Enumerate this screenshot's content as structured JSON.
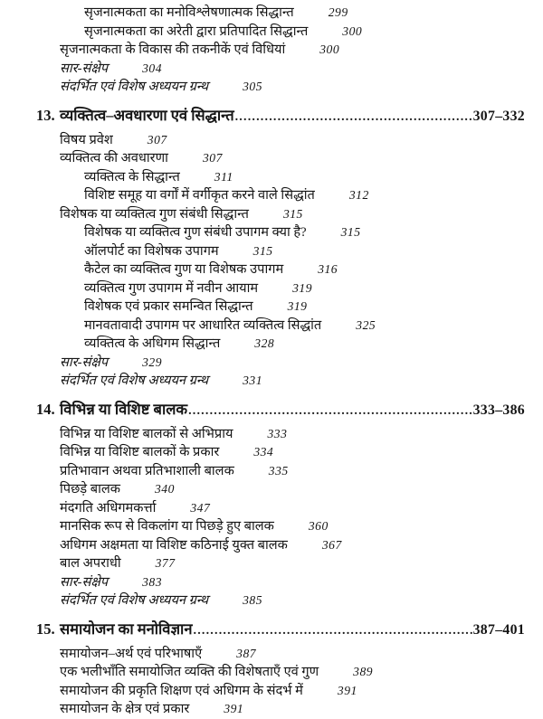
{
  "document": {
    "kind_label": "table-of-contents-page",
    "colors": {
      "background": "#ffffff",
      "text": "#151515"
    },
    "sections": [
      {
        "kind": "entries-only",
        "entries": [
          {
            "level": 2,
            "emphasis": false,
            "title": "सृजनात्मकता का मनोविश्लेषणात्मक सिद्धान्त",
            "page": "299"
          },
          {
            "level": 2,
            "emphasis": false,
            "title": "सृजनात्मकता का अरेती द्वारा प्रतिपादित सिद्धान्त",
            "page": "300"
          },
          {
            "level": 1,
            "emphasis": false,
            "title": "सृजनात्मकता के विकास की तकनीकें एवं विधियां",
            "page": "300"
          },
          {
            "level": 1,
            "emphasis": true,
            "title": "सार-संक्षेप",
            "page": "304"
          },
          {
            "level": 1,
            "emphasis": true,
            "title": "संदर्भित एवं विशेष अध्ययन ग्रन्थ",
            "page": "305"
          }
        ]
      },
      {
        "kind": "chapter",
        "number": "13.",
        "title": "व्यक्तित्व–अवधारणा एवं सिद्धान्त",
        "page_range": "307–332",
        "entries": [
          {
            "level": 1,
            "emphasis": false,
            "title": "विषय प्रवेश",
            "page": "307"
          },
          {
            "level": 1,
            "emphasis": false,
            "title": "व्यक्तित्व की अवधारणा",
            "page": "307"
          },
          {
            "level": 2,
            "emphasis": false,
            "title": "व्यक्तित्व के सिद्धान्त",
            "page": "311"
          },
          {
            "level": 2,
            "emphasis": false,
            "title": "विशिष्ट समूह या वर्गों में वर्गीकृत करने वाले सिद्धांत",
            "page": "312"
          },
          {
            "level": 1,
            "emphasis": false,
            "title": "विशेषक या व्यक्तित्व गुण संबंधी सिद्धान्त",
            "page": "315"
          },
          {
            "level": 2,
            "emphasis": false,
            "title": "विशेषक या व्यक्तित्व गुण संबंधी उपागम क्या है?",
            "page": "315"
          },
          {
            "level": 2,
            "emphasis": false,
            "title": "ऑलपोर्ट का विशेषक उपागम",
            "page": "315"
          },
          {
            "level": 2,
            "emphasis": false,
            "title": "कैटेल का व्यक्तित्व गुण या विशेषक उपागम",
            "page": "316"
          },
          {
            "level": 2,
            "emphasis": false,
            "title": "व्यक्तित्व गुण उपागम में नवीन आयाम",
            "page": "319"
          },
          {
            "level": 2,
            "emphasis": false,
            "title": "विशेषक एवं प्रकार समन्वित सिद्धान्त",
            "page": "319"
          },
          {
            "level": 2,
            "emphasis": false,
            "title": "मानवतावादी उपागम पर आधारित व्यक्तित्व सिद्धांत",
            "page": "325"
          },
          {
            "level": 2,
            "emphasis": false,
            "title": "व्यक्तित्व के अधिगम सिद्धान्त",
            "page": "328"
          },
          {
            "level": 1,
            "emphasis": true,
            "title": "सार-संक्षेप",
            "page": "329"
          },
          {
            "level": 1,
            "emphasis": true,
            "title": "संदर्भित एवं विशेष अध्ययन ग्रन्थ",
            "page": "331"
          }
        ]
      },
      {
        "kind": "chapter",
        "number": "14.",
        "title": "विभिन्न या विशिष्ट बालक",
        "page_range": "333–386",
        "entries": [
          {
            "level": 1,
            "emphasis": false,
            "title": "विभिन्न या विशिष्ट बालकों से अभिप्राय",
            "page": "333"
          },
          {
            "level": 1,
            "emphasis": false,
            "title": "विभिन्न या विशिष्ट बालकों के प्रकार",
            "page": "334"
          },
          {
            "level": 1,
            "emphasis": false,
            "title": "प्रतिभावान अथवा प्रतिभाशाली बालक",
            "page": "335"
          },
          {
            "level": 1,
            "emphasis": false,
            "title": "पिछड़े बालक",
            "page": "340"
          },
          {
            "level": 1,
            "emphasis": false,
            "title": "मंदगति अधिगमकर्त्ता",
            "page": "347"
          },
          {
            "level": 1,
            "emphasis": false,
            "title": "मानसिक रूप से विकलांग या पिछड़े हुए बालक",
            "page": "360"
          },
          {
            "level": 1,
            "emphasis": false,
            "title": "अधिगम अक्षमता या विशिष्ट कठिनाई युक्त बालक",
            "page": "367"
          },
          {
            "level": 1,
            "emphasis": false,
            "title": "बाल अपराधी",
            "page": "377"
          },
          {
            "level": 1,
            "emphasis": true,
            "title": "सार-संक्षेप",
            "page": "383"
          },
          {
            "level": 1,
            "emphasis": true,
            "title": "संदर्भित एवं विशेष अध्ययन ग्रन्थ",
            "page": "385"
          }
        ]
      },
      {
        "kind": "chapter",
        "number": "15.",
        "title": "समायोजन का मनोविज्ञान",
        "page_range": "387–401",
        "entries": [
          {
            "level": 1,
            "emphasis": false,
            "title": "समायोजन–अर्थ एवं परिभाषाएँ",
            "page": "387"
          },
          {
            "level": 1,
            "emphasis": false,
            "title": "एक भलीभाँति समायोजित व्यक्ति की विशेषताएँ एवं गुण",
            "page": "389"
          },
          {
            "level": 1,
            "emphasis": false,
            "title": "समायोजन की प्रकृति शिक्षण एवं अधिगम के संदर्भ में",
            "page": "391"
          },
          {
            "level": 1,
            "emphasis": false,
            "title": "समायोजन के क्षेत्र एवं प्रकार",
            "page": "391"
          }
        ]
      }
    ]
  }
}
